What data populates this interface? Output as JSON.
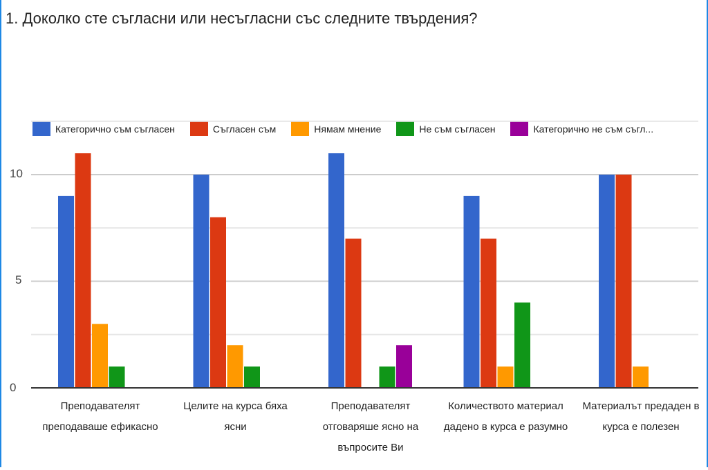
{
  "chart_data": {
    "type": "bar",
    "title": "1. Доколко сте съгласни или несъгласни със следните твърдения?",
    "categories": [
      [
        "Преподавателят",
        "преподаваше ефикасно"
      ],
      [
        "Целите на курса бяха",
        "ясни"
      ],
      [
        "Преподавателят",
        "отговаряше ясно на",
        "въпросите Ви"
      ],
      [
        "Количеството материал",
        "дадено в курса е разумно"
      ],
      [
        "Материалът предаден в",
        "курса е полезен"
      ]
    ],
    "series": [
      {
        "name": "Категорично съм съгласен",
        "color": "#3366cc",
        "values": [
          9,
          10,
          11,
          9,
          10
        ]
      },
      {
        "name": "Съгласен съм",
        "color": "#dc3912",
        "values": [
          11,
          8,
          7,
          7,
          10
        ]
      },
      {
        "name": "Нямам мнение",
        "color": "#ff9900",
        "values": [
          3,
          2,
          0,
          1,
          1
        ]
      },
      {
        "name": "Не съм съгласен",
        "color": "#109618",
        "values": [
          1,
          1,
          1,
          4,
          0
        ]
      },
      {
        "name": "Категорично не съм съгл...",
        "color": "#990099",
        "values": [
          0,
          0,
          2,
          0,
          0
        ]
      }
    ],
    "yticks": [
      "0",
      "5",
      "10"
    ],
    "ylim": [
      0,
      12.5
    ],
    "grid": true,
    "legend_position": "top"
  }
}
